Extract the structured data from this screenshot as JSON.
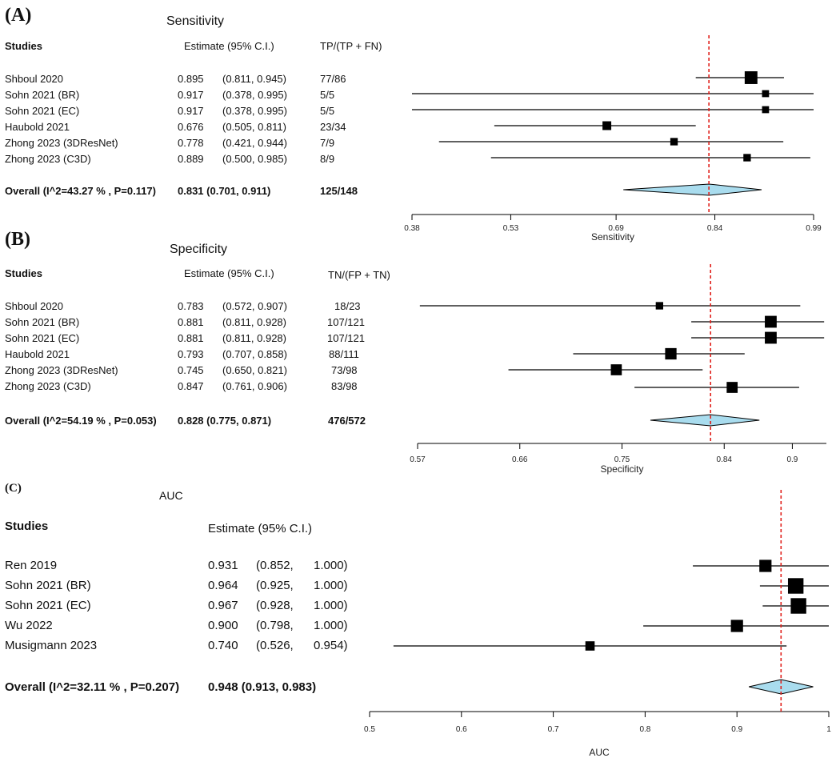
{
  "chart_data": [
    {
      "type": "forest",
      "panel_label": "(A)",
      "title": "Sensitivity",
      "xlabel": "Sensitivity",
      "xlim": [
        0.38,
        0.99
      ],
      "xticks": [
        "0.38",
        "0.53",
        "0.69",
        "0.84",
        "0.99"
      ],
      "reference_line": 0.831,
      "headers": {
        "studies": "Studies",
        "estimate": "Estimate (95% C.I.)",
        "count": "TP/(TP + FN)"
      },
      "studies": [
        {
          "name": "Shboul 2020",
          "est": "0.895",
          "ci": "(0.811, 0.945)",
          "count": "77/86",
          "estimate": 0.895,
          "lower": 0.811,
          "upper": 0.945,
          "weight": 0.9
        },
        {
          "name": "Sohn 2021 (BR)",
          "est": "0.917",
          "ci": "(0.378, 0.995)",
          "count": "5/5",
          "estimate": 0.917,
          "lower": 0.378,
          "upper": 0.995,
          "weight": 0.25
        },
        {
          "name": "Sohn 2021 (EC)",
          "est": "0.917",
          "ci": "(0.378, 0.995)",
          "count": "5/5",
          "estimate": 0.917,
          "lower": 0.378,
          "upper": 0.995,
          "weight": 0.25
        },
        {
          "name": "Haubold 2021",
          "est": "0.676",
          "ci": "(0.505, 0.811)",
          "count": "23/34",
          "estimate": 0.676,
          "lower": 0.505,
          "upper": 0.811,
          "weight": 0.45
        },
        {
          "name": "Zhong 2023 (3DResNet)",
          "est": "0.778",
          "ci": "(0.421, 0.944)",
          "count": "7/9",
          "estimate": 0.778,
          "lower": 0.421,
          "upper": 0.944,
          "weight": 0.3
        },
        {
          "name": "Zhong 2023 (C3D)",
          "est": "0.889",
          "ci": "(0.500, 0.985)",
          "count": "8/9",
          "estimate": 0.889,
          "lower": 0.5,
          "upper": 0.985,
          "weight": 0.3
        }
      ],
      "overall": {
        "label": "Overall (I^2=43.27 % , P=0.117)",
        "est_ci": "0.831 (0.701, 0.911)",
        "count": "125/148",
        "estimate": 0.831,
        "lower": 0.701,
        "upper": 0.911
      }
    },
    {
      "type": "forest",
      "panel_label": "(B)",
      "title": "Specificity",
      "xlabel": "Specificity",
      "xlim": [
        0.57,
        0.93
      ],
      "xticks": [
        "0.57",
        "0.66",
        "0.75",
        "0.84",
        "0.9"
      ],
      "reference_line": 0.828,
      "headers": {
        "studies": "Studies",
        "estimate": "Estimate (95% C.I.)",
        "count": "TN/(FP + TN)"
      },
      "studies": [
        {
          "name": "Shboul 2020",
          "est": "0.783",
          "ci": "(0.572, 0.907)",
          "count": "18/23",
          "estimate": 0.783,
          "lower": 0.572,
          "upper": 0.907,
          "weight": 0.3
        },
        {
          "name": "Sohn 2021 (BR)",
          "est": "0.881",
          "ci": "(0.811, 0.928)",
          "count": "107/121",
          "estimate": 0.881,
          "lower": 0.811,
          "upper": 0.928,
          "weight": 0.8
        },
        {
          "name": "Sohn 2021 (EC)",
          "est": "0.881",
          "ci": "(0.811, 0.928)",
          "count": "107/121",
          "estimate": 0.881,
          "lower": 0.811,
          "upper": 0.928,
          "weight": 0.8
        },
        {
          "name": "Haubold 2021",
          "est": "0.793",
          "ci": "(0.707, 0.858)",
          "count": "88/111",
          "estimate": 0.793,
          "lower": 0.707,
          "upper": 0.858,
          "weight": 0.75
        },
        {
          "name": "Zhong 2023 (3DResNet)",
          "est": "0.745",
          "ci": "(0.650, 0.821)",
          "count": "73/98",
          "estimate": 0.745,
          "lower": 0.65,
          "upper": 0.821,
          "weight": 0.7
        },
        {
          "name": "Zhong 2023 (C3D)",
          "est": "0.847",
          "ci": "(0.761, 0.906)",
          "count": "83/98",
          "estimate": 0.847,
          "lower": 0.761,
          "upper": 0.906,
          "weight": 0.7
        }
      ],
      "overall": {
        "label": "Overall (I^2=54.19 % , P=0.053)",
        "est_ci": "0.828 (0.775, 0.871)",
        "count": "476/572",
        "estimate": 0.828,
        "lower": 0.775,
        "upper": 0.871
      }
    },
    {
      "type": "forest",
      "panel_label": "(C)",
      "title": "AUC",
      "xlabel": "AUC",
      "xlim": [
        0.5,
        1.0
      ],
      "xticks": [
        "0.5",
        "0.6",
        "0.7",
        "0.8",
        "0.9",
        "1"
      ],
      "reference_line": 0.948,
      "headers": {
        "studies": "Studies",
        "estimate": "Estimate (95% C.I.)",
        "count": ""
      },
      "studies": [
        {
          "name": "Ren 2019",
          "est": "0.931",
          "ci": "(0.852,",
          "ci_hi": "1.000)",
          "count": "",
          "estimate": 0.931,
          "lower": 0.852,
          "upper": 1.0,
          "weight": 0.6
        },
        {
          "name": "Sohn 2021 (BR)",
          "est": "0.964",
          "ci": "(0.925,",
          "ci_hi": "1.000)",
          "count": "",
          "estimate": 0.964,
          "lower": 0.925,
          "upper": 1.0,
          "weight": 0.95
        },
        {
          "name": "Sohn 2021 (EC)",
          "est": "0.967",
          "ci": "(0.928,",
          "ci_hi": "1.000)",
          "count": "",
          "estimate": 0.967,
          "lower": 0.928,
          "upper": 1.0,
          "weight": 0.95
        },
        {
          "name": "Wu 2022",
          "est": "0.900",
          "ci": "(0.798,",
          "ci_hi": "1.000)",
          "count": "",
          "estimate": 0.9,
          "lower": 0.798,
          "upper": 1.0,
          "weight": 0.6
        },
        {
          "name": "Musigmann 2023",
          "est": "0.740",
          "ci": "(0.526,",
          "ci_hi": "0.954)",
          "count": "",
          "estimate": 0.74,
          "lower": 0.526,
          "upper": 0.954,
          "weight": 0.3
        }
      ],
      "overall": {
        "label": "Overall (I^2=32.11 % , P=0.207)",
        "est_ci": "0.948 (0.913, 0.983)",
        "count": "",
        "estimate": 0.948,
        "lower": 0.913,
        "upper": 0.983
      }
    }
  ],
  "colors": {
    "ref_line": "#e0201b",
    "diamond_fill": "#a9dcee",
    "ink": "#000000"
  }
}
